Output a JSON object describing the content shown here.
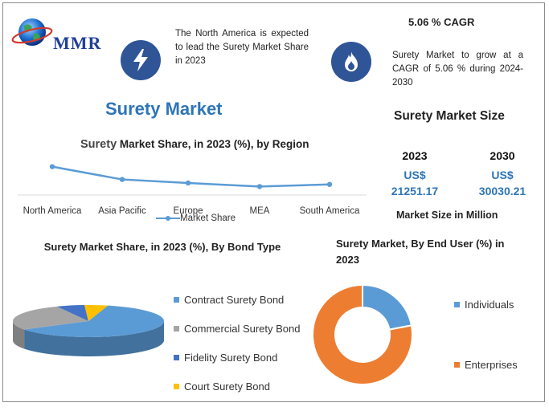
{
  "brand": {
    "logo_text": "MMR"
  },
  "top_note": {
    "text": "The North America is expected to lead the Surety Market Share in 2023"
  },
  "cagr": {
    "title": "5.06 % CAGR",
    "text": "Surety Market to grow at a CAGR of 5.06 % during 2024-2030"
  },
  "page_title": "Surety Market",
  "market_size": {
    "title": "Surety Market Size",
    "years": [
      {
        "year": "2023",
        "currency": "US$",
        "value": "21251.17"
      },
      {
        "year": "2030",
        "currency": "US$",
        "value": "30030.21"
      }
    ],
    "unit": "Market Size in Million"
  },
  "colors": {
    "accent": "#2e75b6",
    "icon_bg": "#2f5597",
    "blue": "#5b9bd5",
    "gray": "#a5a5a5",
    "dark_blue": "#4472c4",
    "gold": "#ffc000",
    "orange": "#ed7d31"
  },
  "icons": {
    "left": "lightning-icon",
    "right": "flame-icon",
    "logo": "globe-icon"
  },
  "chart_data": [
    {
      "type": "line",
      "title_lead": "Surety",
      "title": "Market Share, in 2023 (%), by Region",
      "categories": [
        "North America",
        "Asia Pacific",
        "Europe",
        "MEA",
        "South America"
      ],
      "series": [
        {
          "name": "Market Share",
          "values": [
            40,
            22,
            17,
            12,
            15
          ]
        }
      ],
      "ylim": [
        0,
        60
      ],
      "grid": false,
      "legend": "bottom"
    },
    {
      "type": "pie",
      "style": "3d",
      "title": "Surety Market Share, in 2023 (%), By Bond Type",
      "labels": [
        "Contract Surety Bond",
        "Commercial Surety Bond",
        "Fidelity Surety Bond",
        "Court Surety Bond"
      ],
      "values": [
        62,
        27,
        6,
        5
      ],
      "legend": "right"
    },
    {
      "type": "pie",
      "style": "donut",
      "title": "Surety Market, By End User (%) in 2023",
      "labels": [
        "Individuals",
        "Enterprises"
      ],
      "values": [
        22,
        78
      ],
      "legend": "right"
    }
  ]
}
